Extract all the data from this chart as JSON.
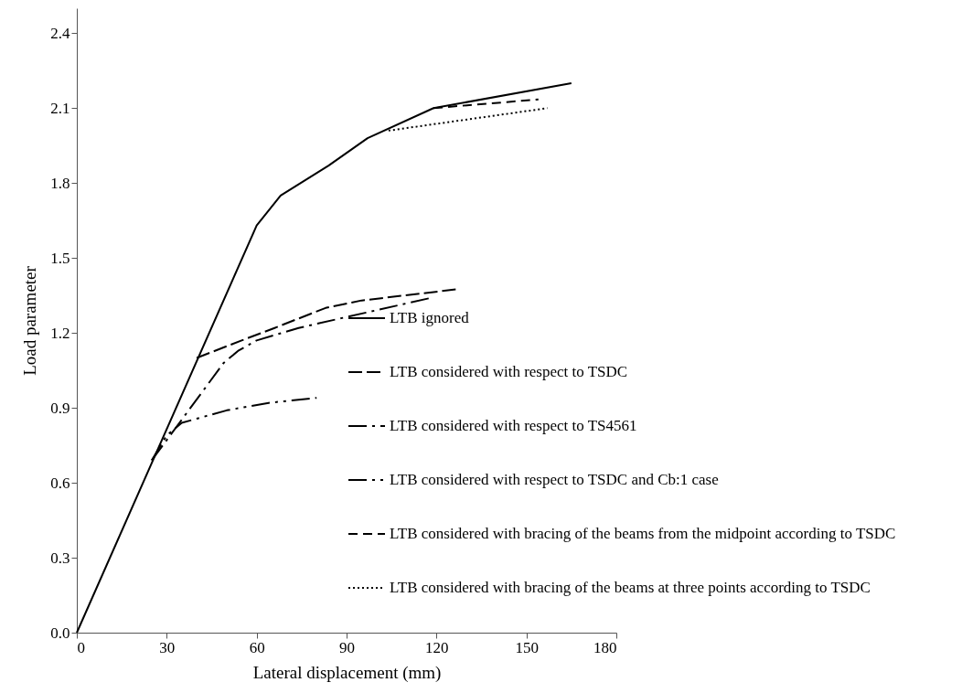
{
  "chart_data": {
    "type": "line",
    "xlabel": "Lateral displacement (mm)",
    "ylabel": "Load parameter",
    "xlim": [
      0,
      180
    ],
    "xticks": [
      0,
      30,
      60,
      90,
      120,
      150,
      180
    ],
    "ylim": [
      0,
      2.5
    ],
    "yticks": [
      {
        "value": 0,
        "label": "0.0"
      },
      0.3,
      0.6,
      0.9,
      1.2,
      1.5,
      1.8,
      2.1,
      2.4
    ],
    "grid": false,
    "legend": "right",
    "marker": "none",
    "series": [
      {
        "name": "LTB ignored",
        "color": "#000000",
        "line_style": "solid",
        "x": [
          0,
          60,
          68,
          84,
          97,
          119,
          165
        ],
        "values": [
          0,
          1.63,
          1.75,
          1.87,
          1.98,
          2.1,
          2.2
        ]
      },
      {
        "name": "LTB considered with respect to TSDC",
        "color": "#000000",
        "line_style": "dashed",
        "x": [
          40,
          55,
          66,
          83,
          95,
          127
        ],
        "values": [
          1.1,
          1.17,
          1.22,
          1.3,
          1.33,
          1.375
        ]
      },
      {
        "name": "LTB considered with respect to TS4561",
        "color": "#000000",
        "line_style": "dashdot",
        "x": [
          25,
          49,
          54,
          60,
          74,
          118
        ],
        "values": [
          0.69,
          1.08,
          1.13,
          1.17,
          1.22,
          1.34
        ]
      },
      {
        "name": "LTB considered with respect to TSDC and Cb:1 case",
        "color": "#000000",
        "line_style": "dashdotdot",
        "x": [
          25,
          30,
          35,
          50,
          64,
          80
        ],
        "values": [
          0.69,
          0.79,
          0.84,
          0.89,
          0.92,
          0.94
        ]
      },
      {
        "name": "LTB considered with bracing of the beams from the midpoint according to TSDC",
        "color": "#000000",
        "line_style": "shortdashed",
        "x": [
          119,
          154
        ],
        "values": [
          2.1,
          2.135
        ]
      },
      {
        "name": "LTB considered with bracing of the beams at three points according to TSDC",
        "color": "#000000",
        "line_style": "dotted",
        "x": [
          104,
          157
        ],
        "values": [
          2.01,
          2.1
        ]
      }
    ]
  }
}
